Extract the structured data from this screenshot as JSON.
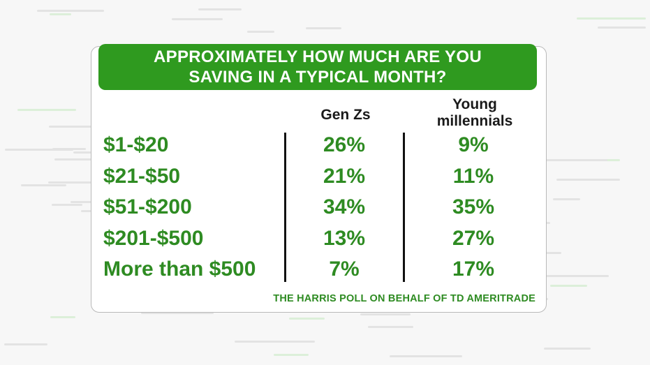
{
  "chart_data": {
    "type": "table",
    "title": "APPROXIMATELY HOW MUCH ARE YOU SAVING IN A TYPICAL MONTH?",
    "title_lines": [
      "APPROXIMATELY HOW MUCH ARE YOU",
      "SAVING IN A TYPICAL MONTH?"
    ],
    "columns": [
      {
        "name": "Gen Zs",
        "lines": [
          "Gen Zs"
        ]
      },
      {
        "name": "Young millennials",
        "lines": [
          "Young",
          "millennials"
        ]
      }
    ],
    "categories": [
      "$1-$20",
      "$21-$50",
      "$51-$200",
      "$201-$500",
      "More than $500"
    ],
    "series": [
      {
        "name": "Gen Zs",
        "values": [
          26,
          21,
          34,
          13,
          7
        ]
      },
      {
        "name": "Young millennials",
        "values": [
          9,
          11,
          35,
          27,
          17
        ]
      }
    ],
    "value_suffix": "%",
    "source": "THE HARRIS POLL ON BEHALF OF TD AMERITRADE"
  },
  "colors": {
    "accent_green": "#2f9a1f",
    "text_green": "#2e8b22",
    "card_border": "#b9b9b9"
  }
}
